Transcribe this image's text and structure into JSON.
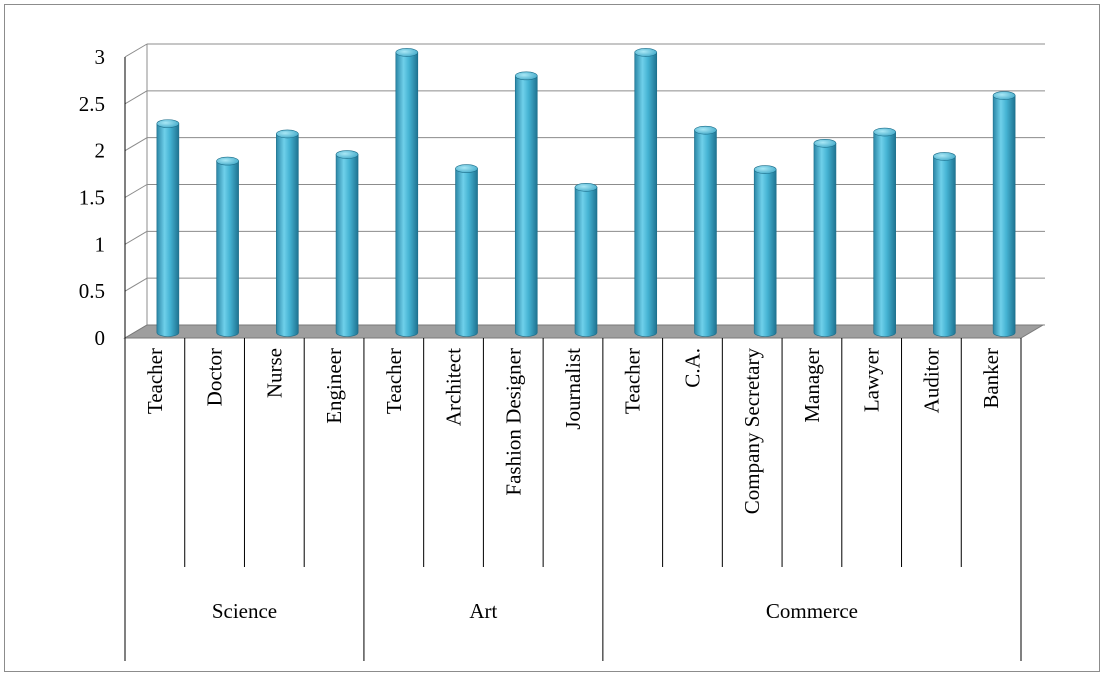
{
  "chart_data": {
    "type": "bar",
    "title": "",
    "xlabel": "",
    "ylabel": "",
    "ylim": [
      0,
      3
    ],
    "yticks": [
      "0",
      "0.5",
      "1",
      "1.5",
      "2",
      "2.5",
      "3"
    ],
    "grid": true,
    "legend": "none",
    "bar_color": "#3fa8c8",
    "groups": [
      {
        "label": "Science",
        "categories": [
          "Teacher",
          "Doctor",
          "Nurse",
          "Engineer"
        ]
      },
      {
        "label": "Art",
        "categories": [
          "Teacher",
          "Architect",
          "Fashion Designer",
          "Journalist"
        ]
      },
      {
        "label": "Commerce",
        "categories": [
          "Teacher",
          "C.A.",
          "Company Secretary",
          "Manager",
          "Lawyer",
          "Auditor",
          "Banker"
        ]
      }
    ],
    "categories": [
      "Teacher",
      "Doctor",
      "Nurse",
      "Engineer",
      "Teacher",
      "Architect",
      "Fashion Designer",
      "Journalist",
      "Teacher",
      "C.A.",
      "Company Secretary",
      "Manager",
      "Lawyer",
      "Auditor",
      "Banker"
    ],
    "series": [
      {
        "values": [
          2.23,
          1.83,
          2.12,
          1.9,
          2.99,
          1.75,
          2.74,
          1.55,
          2.99,
          2.16,
          1.74,
          2.02,
          2.14,
          1.88,
          2.53
        ]
      }
    ]
  }
}
